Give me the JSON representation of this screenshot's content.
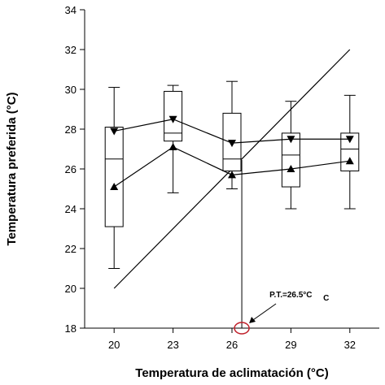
{
  "chart_data": {
    "type": "box",
    "xlabel": "Temperatura de aclimatación (°C)",
    "ylabel": "Temperatura preferida (°C)",
    "xlim": [
      18.5,
      33.5
    ],
    "ylim": [
      18,
      34
    ],
    "x_ticks": [
      20,
      23,
      26,
      29,
      32
    ],
    "y_ticks": [
      18,
      20,
      22,
      24,
      26,
      28,
      30,
      32,
      34
    ],
    "x_tick_labels": [
      "20",
      "23",
      "26",
      "29",
      "32"
    ],
    "y_tick_labels": [
      "18",
      "20",
      "22",
      "24",
      "26",
      "28",
      "30",
      "32",
      "34"
    ],
    "grid": false,
    "boxes": [
      {
        "x": 20,
        "min": 21.0,
        "q1": 23.1,
        "median": 26.5,
        "q3": 28.1,
        "max": 30.1
      },
      {
        "x": 23,
        "min": 24.8,
        "q1": 27.4,
        "median": 27.8,
        "q3": 29.9,
        "max": 30.2
      },
      {
        "x": 26,
        "min": 25.0,
        "q1": 25.9,
        "median": 26.5,
        "q3": 28.8,
        "max": 30.4
      },
      {
        "x": 29,
        "min": 24.0,
        "q1": 25.1,
        "median": 26.7,
        "q3": 27.8,
        "max": 29.4
      },
      {
        "x": 32,
        "min": 24.0,
        "q1": 25.9,
        "median": 27.0,
        "q3": 27.8,
        "max": 29.7
      }
    ],
    "series": [
      {
        "marker": "triangle-down",
        "x": [
          20,
          23,
          26,
          29,
          32
        ],
        "values": [
          27.9,
          28.5,
          27.3,
          27.5,
          27.5
        ]
      },
      {
        "marker": "triangle-up",
        "x": [
          20,
          23,
          26,
          29,
          32
        ],
        "values": [
          25.1,
          27.1,
          25.7,
          26.0,
          26.4
        ]
      }
    ],
    "reference_line": {
      "x": [
        20,
        32
      ],
      "values": [
        20,
        32
      ]
    },
    "annotation": {
      "text": "P.T.=26.5°C",
      "subscript": "C",
      "x": 26.5,
      "y": 18
    }
  }
}
